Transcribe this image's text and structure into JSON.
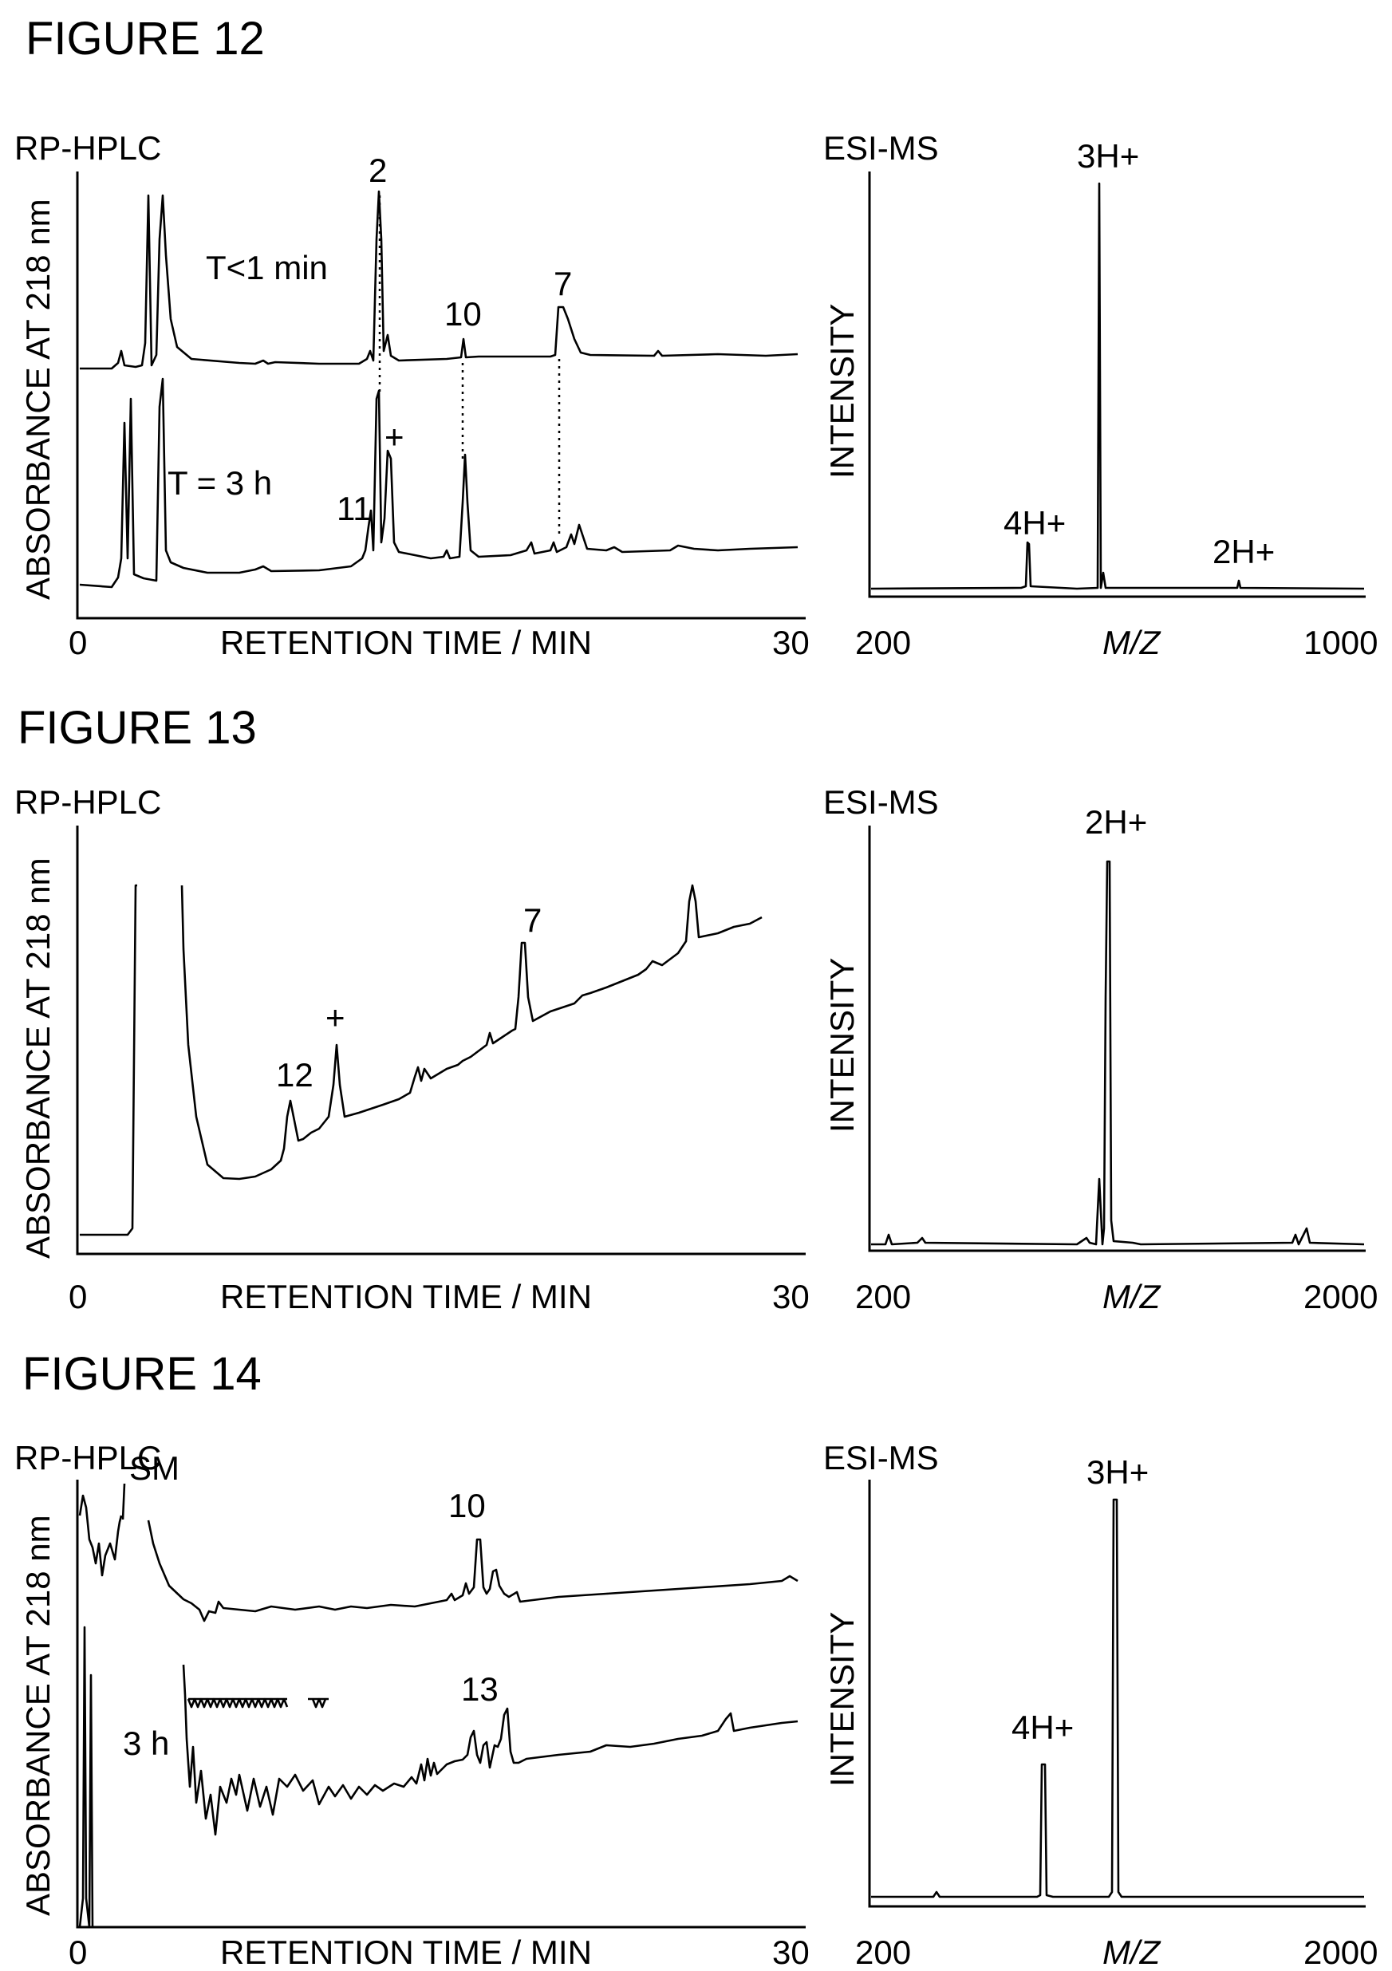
{
  "figures": [
    {
      "title": "FIGURE 12",
      "hplc": {
        "method": "RP-HPLC",
        "ylabel": "ABSORBANCE AT 218 nm",
        "xlabel": "RETENTION TIME / MIN",
        "xmin": "0",
        "xmax": "30",
        "trace_labels": [
          "T<1 min",
          "T = 3 h"
        ],
        "peak_labels": [
          "2",
          "10",
          "7",
          "+",
          "11"
        ]
      },
      "ms": {
        "method": "ESI-MS",
        "ylabel": "INTENSITY",
        "xlabel": "M/Z",
        "xmin": "200",
        "xmax": "1000",
        "peak_labels": [
          "3H+",
          "4H+",
          "2H+"
        ]
      }
    },
    {
      "title": "FIGURE 13",
      "hplc": {
        "method": "RP-HPLC",
        "ylabel": "ABSORBANCE AT 218 nm",
        "xlabel": "RETENTION TIME / MIN",
        "xmin": "0",
        "xmax": "30",
        "peak_labels": [
          "7",
          "+",
          "12"
        ]
      },
      "ms": {
        "method": "ESI-MS",
        "ylabel": "INTENSITY",
        "xlabel": "M/Z",
        "xmin": "200",
        "xmax": "2000",
        "peak_labels": [
          "2H+"
        ]
      }
    },
    {
      "title": "FIGURE 14",
      "hplc": {
        "method": "RP-HPLC",
        "ylabel": "ABSORBANCE AT 218 nm",
        "xlabel": "RETENTION TIME / MIN",
        "xmin": "0",
        "xmax": "30",
        "trace_labels": [
          "3 h"
        ],
        "peak_labels": [
          "SM",
          "10",
          "13"
        ]
      },
      "ms": {
        "method": "ESI-MS",
        "ylabel": "INTENSITY",
        "xlabel": "M/Z",
        "xmin": "200",
        "xmax": "2000",
        "peak_labels": [
          "3H+",
          "4H+"
        ]
      }
    }
  ]
}
